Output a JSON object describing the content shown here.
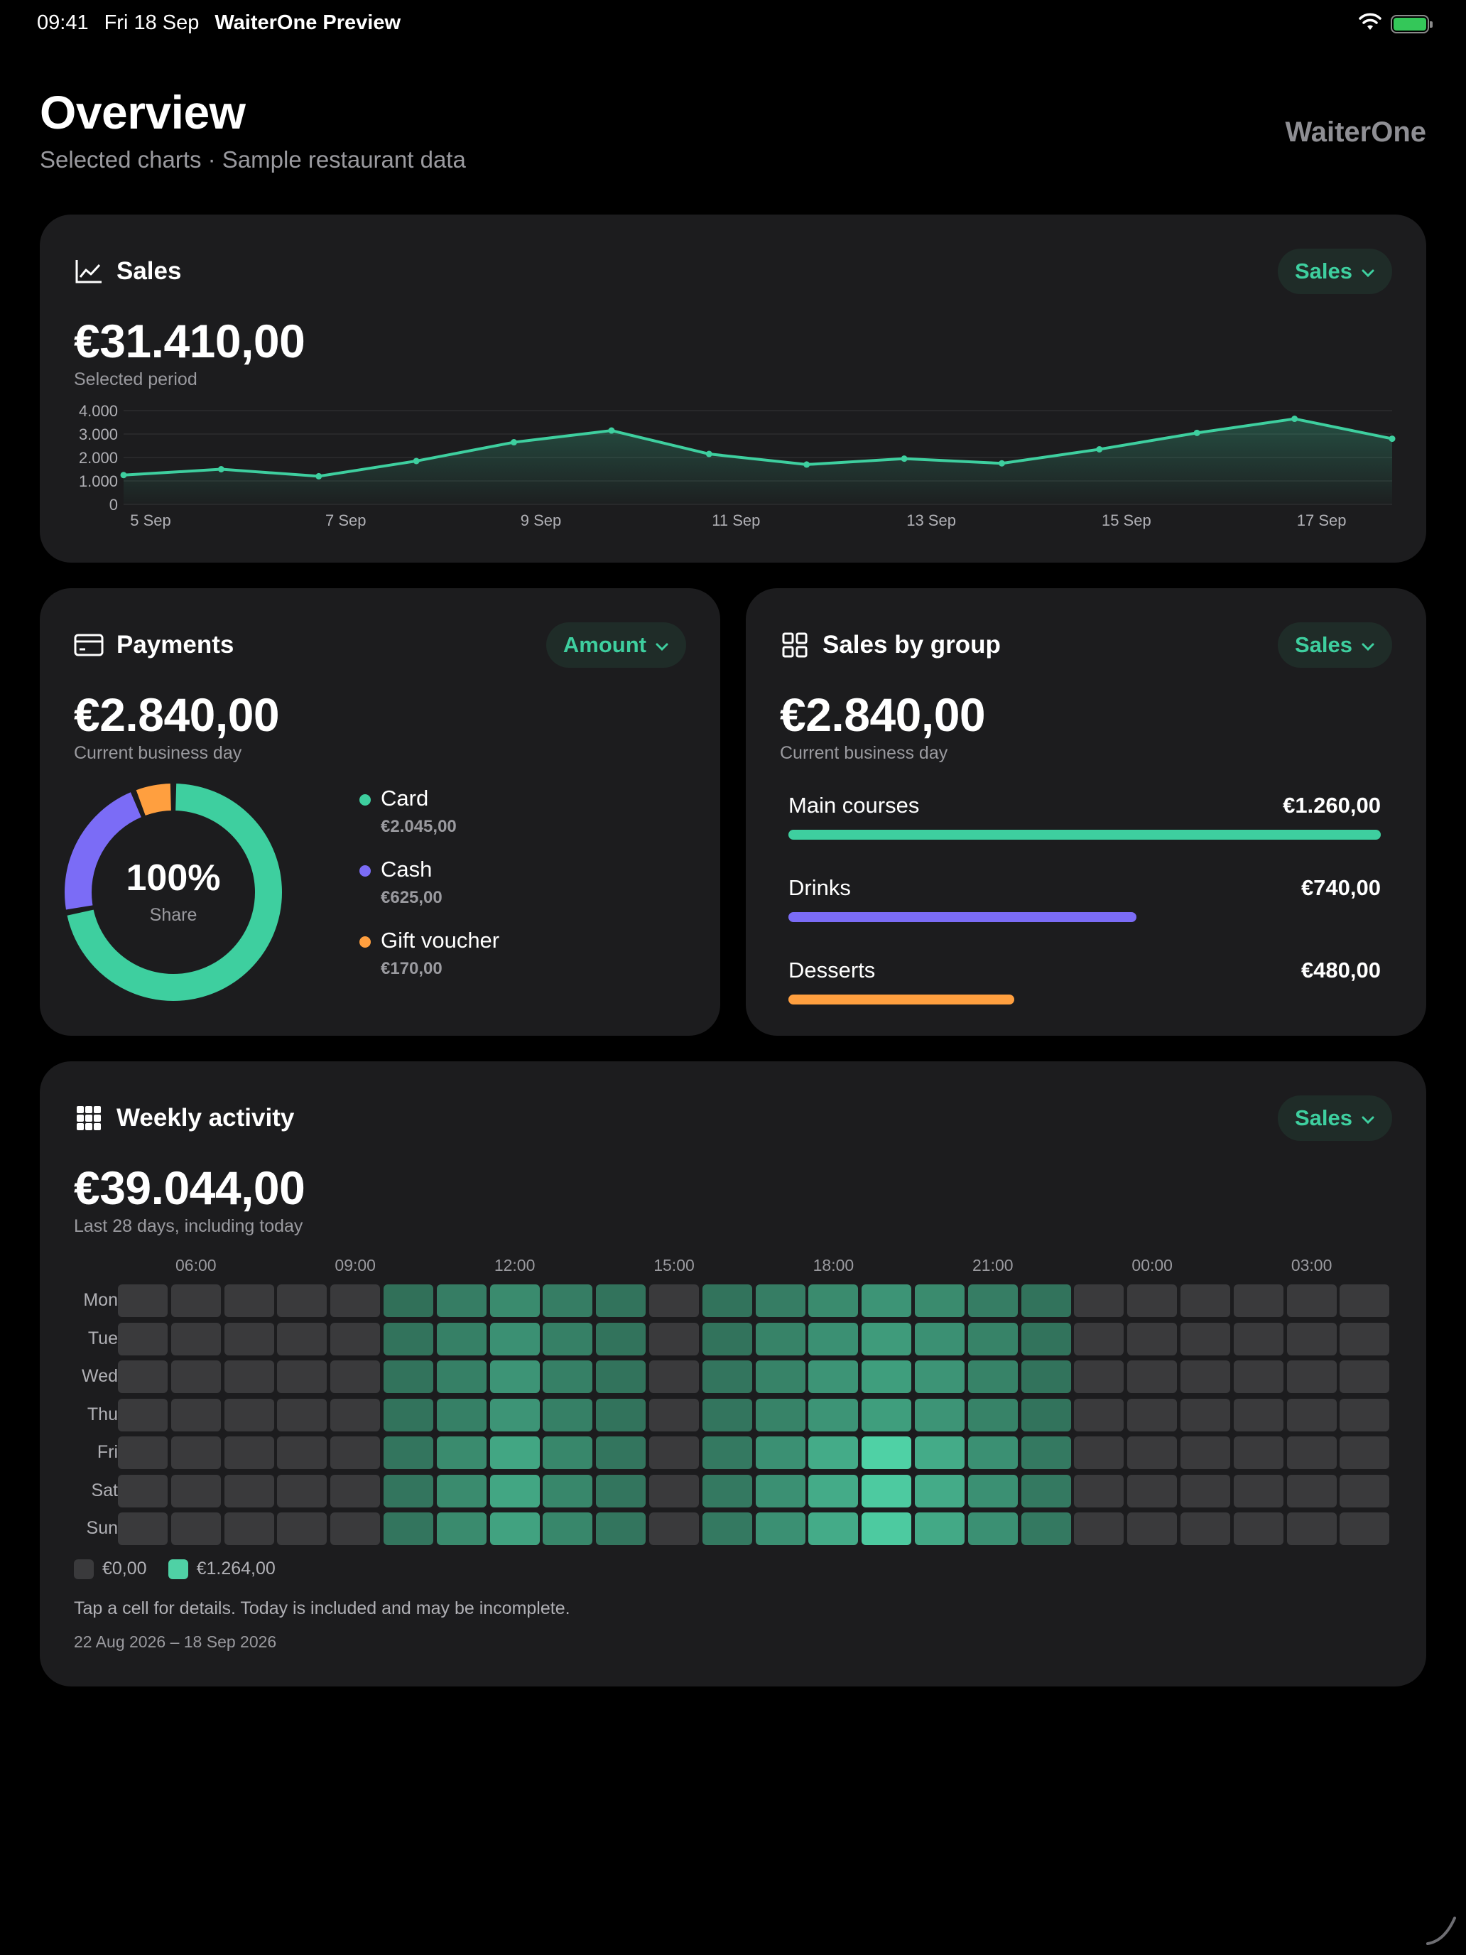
{
  "status": {
    "time": "09:41",
    "date": "Fri 18 Sep",
    "app": "WaiterOne Preview"
  },
  "header": {
    "title": "Overview",
    "subtitle": "Selected charts · Sample restaurant data",
    "brand": "WaiterOne"
  },
  "sales_card": {
    "title": "Sales",
    "icon": "line-chart-icon",
    "dropdown": "Sales",
    "value": "€31.410,00",
    "caption": "Selected period"
  },
  "payments_card": {
    "title": "Payments",
    "icon": "credit-card-icon",
    "dropdown": "Amount",
    "value": "€2.840,00",
    "caption": "Current business day",
    "center_value": "100%",
    "center_label": "Share",
    "items": [
      {
        "name": "Card",
        "value": "€2.045,00",
        "color": "#3ecf9f"
      },
      {
        "name": "Cash",
        "value": "€625,00",
        "color": "#7b6cf6"
      },
      {
        "name": "Gift voucher",
        "value": "€170,00",
        "color": "#ff9f3f"
      }
    ]
  },
  "groups_card": {
    "title": "Sales by group",
    "icon": "grid-icon",
    "dropdown": "Sales",
    "value": "€2.840,00",
    "caption": "Current business day",
    "items": [
      {
        "name": "Main courses",
        "value": "€1.260,00",
        "amount": 1260,
        "color": "#3ecf9f"
      },
      {
        "name": "Drinks",
        "value": "€740,00",
        "amount": 740,
        "color": "#7b6cf6"
      },
      {
        "name": "Desserts",
        "value": "€480,00",
        "amount": 480,
        "color": "#ff9f3f"
      }
    ]
  },
  "weekly_card": {
    "title": "Weekly activity",
    "icon": "heatmap-grid-icon",
    "dropdown": "Sales",
    "value": "€39.044,00",
    "caption": "Last 28 days, including today",
    "legend_min": "€0,00",
    "legend_max": "€1.264,00",
    "note": "Tap a cell for details. Today is included and may be incomplete.",
    "range": "22 Aug 2026 – 18 Sep 2026"
  },
  "colors": {
    "accent": "#3ecf9f",
    "purple": "#7b6cf6",
    "orange": "#ff9f3f",
    "card": "#1c1c1e"
  },
  "chart_data": [
    {
      "type": "line",
      "title": "Sales",
      "x": [
        "5 Sep",
        "6 Sep",
        "7 Sep",
        "8 Sep",
        "9 Sep",
        "10 Sep",
        "11 Sep",
        "12 Sep",
        "13 Sep",
        "14 Sep",
        "15 Sep",
        "16 Sep",
        "17 Sep",
        "18 Sep"
      ],
      "x_tick_labels": [
        "5 Sep",
        "7 Sep",
        "9 Sep",
        "11 Sep",
        "13 Sep",
        "15 Sep",
        "17 Sep"
      ],
      "series": [
        {
          "values": [
            1250,
            1500,
            1200,
            1850,
            2650,
            3150,
            2150,
            1700,
            1950,
            1750,
            2350,
            3050,
            3650,
            2800
          ]
        }
      ],
      "yticks": [
        "0",
        "1.000",
        "2.000",
        "3.000",
        "4.000"
      ],
      "ylim": [
        0,
        4000
      ],
      "grid": true
    },
    {
      "type": "pie",
      "title": "Payments",
      "categories": [
        "Card",
        "Cash",
        "Gift voucher"
      ],
      "values": [
        2045,
        625,
        170
      ]
    },
    {
      "type": "bar",
      "title": "Sales by group",
      "categories": [
        "Main courses",
        "Drinks",
        "Desserts"
      ],
      "values": [
        1260,
        740,
        480
      ]
    },
    {
      "type": "heatmap",
      "title": "Weekly activity",
      "x_tick_labels": [
        "06:00",
        "09:00",
        "12:00",
        "15:00",
        "18:00",
        "21:00",
        "00:00",
        "03:00"
      ],
      "rows": [
        "Mon",
        "Tue",
        "Wed",
        "Thu",
        "Fri",
        "Sat",
        "Sun"
      ],
      "hours": [
        "05:00",
        "06:00",
        "07:00",
        "08:00",
        "09:00",
        "10:00",
        "11:00",
        "12:00",
        "13:00",
        "14:00",
        "15:00",
        "16:00",
        "17:00",
        "18:00",
        "19:00",
        "20:00",
        "21:00",
        "22:00",
        "23:00",
        "00:00",
        "01:00",
        "02:00",
        "03:00",
        "04:00"
      ],
      "levels": [
        [
          0,
          0,
          0,
          0,
          0,
          0.28,
          0.38,
          0.48,
          0.38,
          0.3,
          0,
          0.3,
          0.38,
          0.48,
          0.55,
          0.48,
          0.38,
          0.3,
          0,
          0,
          0,
          0,
          0,
          0
        ],
        [
          0,
          0,
          0,
          0,
          0,
          0.3,
          0.4,
          0.52,
          0.4,
          0.3,
          0,
          0.3,
          0.42,
          0.52,
          0.6,
          0.52,
          0.42,
          0.3,
          0,
          0,
          0,
          0,
          0,
          0
        ],
        [
          0,
          0,
          0,
          0,
          0,
          0.3,
          0.4,
          0.55,
          0.4,
          0.3,
          0,
          0.32,
          0.42,
          0.55,
          0.62,
          0.55,
          0.42,
          0.3,
          0,
          0,
          0,
          0,
          0,
          0
        ],
        [
          0,
          0,
          0,
          0,
          0,
          0.3,
          0.4,
          0.55,
          0.4,
          0.3,
          0,
          0.32,
          0.42,
          0.55,
          0.62,
          0.55,
          0.42,
          0.3,
          0,
          0,
          0,
          0,
          0,
          0
        ],
        [
          0,
          0,
          0,
          0,
          0,
          0.32,
          0.48,
          0.68,
          0.45,
          0.32,
          0,
          0.35,
          0.52,
          0.72,
          1.0,
          0.72,
          0.52,
          0.35,
          0,
          0,
          0,
          0,
          0,
          0
        ],
        [
          0,
          0,
          0,
          0,
          0,
          0.32,
          0.48,
          0.68,
          0.45,
          0.32,
          0,
          0.35,
          0.52,
          0.72,
          0.95,
          0.72,
          0.52,
          0.35,
          0,
          0,
          0,
          0,
          0,
          0
        ],
        [
          0,
          0,
          0,
          0,
          0,
          0.32,
          0.48,
          0.65,
          0.45,
          0.32,
          0,
          0.35,
          0.52,
          0.72,
          0.95,
          0.7,
          0.52,
          0.35,
          0,
          0,
          0,
          0,
          0,
          0
        ]
      ],
      "legend": [
        "€0,00",
        "€1.264,00"
      ]
    }
  ]
}
